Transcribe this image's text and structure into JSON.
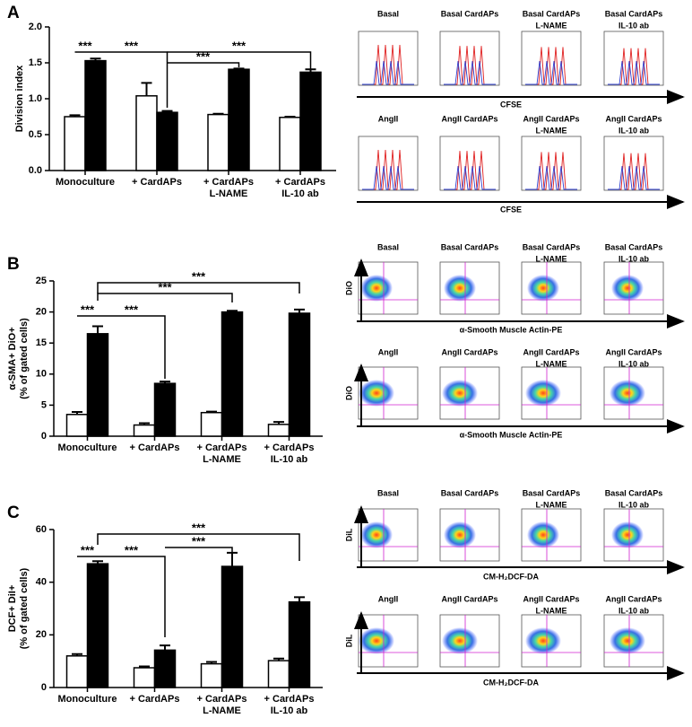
{
  "chart_data": [
    {
      "type": "bar",
      "panel_label": "A",
      "ylabel": [
        "Division index"
      ],
      "categories": [
        [
          "Monoculture"
        ],
        [
          "+ CardAPs"
        ],
        [
          "+ CardAPs",
          "L-NAME"
        ],
        [
          "+ CardAPs",
          "IL-10 ab"
        ]
      ],
      "series": [
        {
          "color": "#ffffff",
          "values": [
            0.75,
            1.04,
            0.78,
            0.74
          ],
          "errors": [
            0.02,
            0.18,
            0.01,
            0.01
          ]
        },
        {
          "color": "#000000",
          "values": [
            1.53,
            0.81,
            1.41,
            1.37
          ],
          "errors": [
            0.03,
            0.02,
            0.01,
            0.04
          ]
        }
      ],
      "ylim": [
        0,
        2
      ],
      "yticks": [
        {
          "value": 0,
          "label": "0.0"
        },
        0.5,
        {
          "value": 1,
          "label": "1.0"
        },
        1.5,
        {
          "value": 2,
          "label": "2.0"
        }
      ],
      "annotations": [
        "***",
        "***",
        "***",
        "***"
      ]
    },
    {
      "type": "bar",
      "panel_label": "B",
      "ylabel": [
        "α-SMA+ DiO+",
        "(% of gated cells)"
      ],
      "categories": [
        [
          "Monoculture"
        ],
        [
          "+ CardAPs"
        ],
        [
          "+ CardAPs",
          "L-NAME"
        ],
        [
          "+ CardAPs",
          "IL-10 ab"
        ]
      ],
      "series": [
        {
          "color": "#ffffff",
          "values": [
            3.5,
            1.8,
            3.8,
            1.9
          ],
          "errors": [
            0.4,
            0.3,
            0.15,
            0.4
          ]
        },
        {
          "color": "#000000",
          "values": [
            16.5,
            8.5,
            20,
            19.8
          ],
          "errors": [
            1.2,
            0.3,
            0.2,
            0.6
          ]
        }
      ],
      "ylim": [
        0,
        25
      ],
      "yticks": [
        0,
        5,
        10,
        15,
        20,
        25
      ],
      "annotations": [
        "***",
        "***",
        "***",
        "***"
      ]
    },
    {
      "type": "bar",
      "panel_label": "C",
      "ylabel": [
        "DCF+ DiI+",
        "(% of gated cells)"
      ],
      "categories": [
        [
          "Monoculture"
        ],
        [
          "+ CardAPs"
        ],
        [
          "+ CardAPs",
          "L-NAME"
        ],
        [
          "+ CardAPs",
          "IL-10 ab"
        ]
      ],
      "series": [
        {
          "color": "#ffffff",
          "values": [
            12,
            7.5,
            9,
            10.2
          ],
          "errors": [
            0.7,
            0.5,
            0.7,
            0.8
          ]
        },
        {
          "color": "#000000",
          "values": [
            47,
            14.2,
            46,
            32.5
          ],
          "errors": [
            1,
            1.8,
            5.2,
            1.8
          ]
        }
      ],
      "ylim": [
        0,
        60
      ],
      "yticks": [
        0,
        20,
        40,
        60
      ],
      "annotations": [
        "***",
        "***",
        "***",
        "***"
      ]
    }
  ],
  "flow": [
    {
      "rows": [
        {
          "titles": [
            [
              "Basal"
            ],
            [
              "Basal CardAPs"
            ],
            [
              "Basal CardAPs",
              "L-NAME"
            ],
            [
              "Basal CardAPs",
              "IL-10 ab"
            ]
          ],
          "xlabel": "CFSE"
        },
        {
          "titles": [
            [
              "AngII"
            ],
            [
              "AngII CardAPs"
            ],
            [
              "AngII CardAPs",
              "L-NAME"
            ],
            [
              "AngII CardAPs",
              "IL-10 ab"
            ]
          ],
          "xlabel": "CFSE"
        }
      ]
    },
    {
      "rows": [
        {
          "titles": [
            [
              "Basal"
            ],
            [
              "Basal CardAPs"
            ],
            [
              "Basal CardAPs",
              "L-NAME"
            ],
            [
              "Basal CardAPs",
              "IL-10 ab"
            ]
          ],
          "xlabel": "α-Smooth Muscle Actin-PE",
          "ylabel": "DiO"
        },
        {
          "titles": [
            [
              "AngII"
            ],
            [
              "AngII CardAPs"
            ],
            [
              "AngII CardAPs",
              "L-NAME"
            ],
            [
              "AngII CardAPs",
              "IL-10 ab"
            ]
          ],
          "xlabel": "α-Smooth Muscle Actin-PE",
          "ylabel": "DiO"
        }
      ]
    },
    {
      "rows": [
        {
          "titles": [
            [
              "Basal"
            ],
            [
              "Basal CardAPs"
            ],
            [
              "Basal CardAPs",
              "L-NAME"
            ],
            [
              "Basal CardAPs",
              "IL-10 ab"
            ]
          ],
          "xlabel": "CM-H₂DCF-DA",
          "ylabel": "DiL"
        },
        {
          "titles": [
            [
              "AngII"
            ],
            [
              "AngII CardAPs"
            ],
            [
              "AngII CardAPs",
              "L-NAME"
            ],
            [
              "AngII CardAPs",
              "IL-10 ab"
            ]
          ],
          "xlabel": "CM-H₂DCF-DA",
          "ylabel": "DiL"
        }
      ]
    }
  ]
}
